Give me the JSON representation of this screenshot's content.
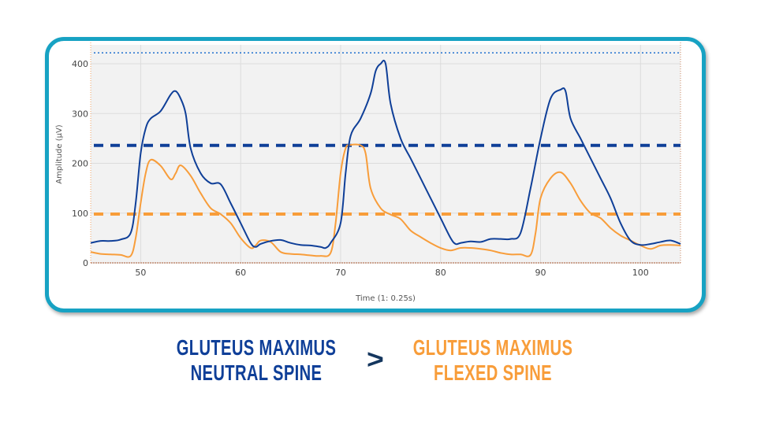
{
  "chart_data": {
    "type": "line",
    "xlabel": "Time (1: 0.25s)",
    "ylabel": "Amplitude (µV)",
    "xlim": [
      45,
      104
    ],
    "ylim": [
      0,
      438
    ],
    "xticks": [
      50,
      60,
      70,
      80,
      90,
      100
    ],
    "yticks": [
      0,
      100,
      200,
      300,
      400
    ],
    "grid": true,
    "colors": {
      "neutral": "#0f3f98",
      "flexed": "#f89d3a",
      "reference": "#1f6fd0",
      "frame": "#17a2c3",
      "plot_bg": "#f2f2f2"
    },
    "series": [
      {
        "key": "neutral",
        "color": "#0f3f98",
        "x": [
          45,
          46,
          47,
          48,
          49,
          49.5,
          50,
          50.5,
          51,
          52,
          53,
          53.5,
          54,
          54.5,
          55,
          56,
          57,
          58,
          59,
          60,
          61,
          61.5,
          62,
          63,
          64,
          65,
          66,
          67,
          68,
          68.5,
          69,
          70,
          70.5,
          71,
          72,
          73,
          73.5,
          74,
          74.5,
          75,
          76,
          77,
          78,
          79,
          80,
          81,
          81.5,
          82,
          83,
          84,
          85,
          86,
          87,
          88,
          89,
          90,
          91,
          92,
          92.5,
          93,
          94,
          95,
          96,
          97,
          98,
          99,
          100,
          101,
          102,
          103,
          104
        ],
        "y": [
          40,
          44,
          44,
          47,
          60,
          120,
          220,
          270,
          290,
          305,
          338,
          345,
          330,
          300,
          230,
          180,
          160,
          158,
          120,
          80,
          40,
          32,
          38,
          44,
          46,
          40,
          36,
          35,
          32,
          30,
          40,
          80,
          180,
          255,
          290,
          340,
          385,
          400,
          400,
          320,
          250,
          210,
          170,
          130,
          90,
          50,
          38,
          40,
          43,
          42,
          48,
          48,
          48,
          60,
          150,
          250,
          330,
          348,
          345,
          290,
          250,
          210,
          170,
          130,
          80,
          45,
          36,
          38,
          42,
          45,
          38
        ]
      },
      {
        "key": "flexed",
        "color": "#f89d3a",
        "x": [
          45,
          46,
          47,
          48,
          49,
          49.5,
          50,
          50.5,
          51,
          52,
          53,
          53.5,
          54,
          55,
          56,
          57,
          58,
          59,
          60,
          61,
          61.5,
          62,
          63,
          64,
          65,
          66,
          67,
          68,
          69,
          69.5,
          70,
          70.5,
          71,
          72,
          72.5,
          73,
          74,
          75,
          76,
          77,
          78,
          79,
          80,
          81,
          82,
          83,
          84,
          85,
          86,
          87,
          88,
          89,
          89.5,
          90,
          91,
          92,
          93,
          94,
          95,
          96,
          97,
          98,
          99,
          100,
          101,
          102,
          103,
          104
        ],
        "y": [
          22,
          18,
          17,
          16,
          14,
          50,
          120,
          180,
          207,
          195,
          168,
          180,
          196,
          175,
          140,
          110,
          98,
          80,
          50,
          30,
          35,
          45,
          42,
          22,
          18,
          17,
          15,
          14,
          20,
          80,
          180,
          230,
          237,
          236,
          220,
          150,
          110,
          97,
          88,
          65,
          52,
          40,
          30,
          25,
          30,
          30,
          28,
          25,
          20,
          17,
          17,
          16,
          60,
          130,
          170,
          182,
          160,
          125,
          100,
          90,
          70,
          55,
          45,
          35,
          28,
          35,
          36,
          35
        ]
      }
    ],
    "reference_lines": [
      {
        "y": 236,
        "color": "#0f3f98",
        "style": "dashed"
      },
      {
        "y": 98,
        "color": "#f89d3a",
        "style": "dashed"
      },
      {
        "y": 422,
        "color": "#1f6fd0",
        "style": "dotted"
      }
    ]
  },
  "caption": {
    "left": [
      "GLUTEUS MAXIMUS",
      "NEUTRAL SPINE"
    ],
    "comparator": ">",
    "right": [
      "GLUTEUS MAXIMUS",
      "FLEXED SPINE"
    ]
  }
}
